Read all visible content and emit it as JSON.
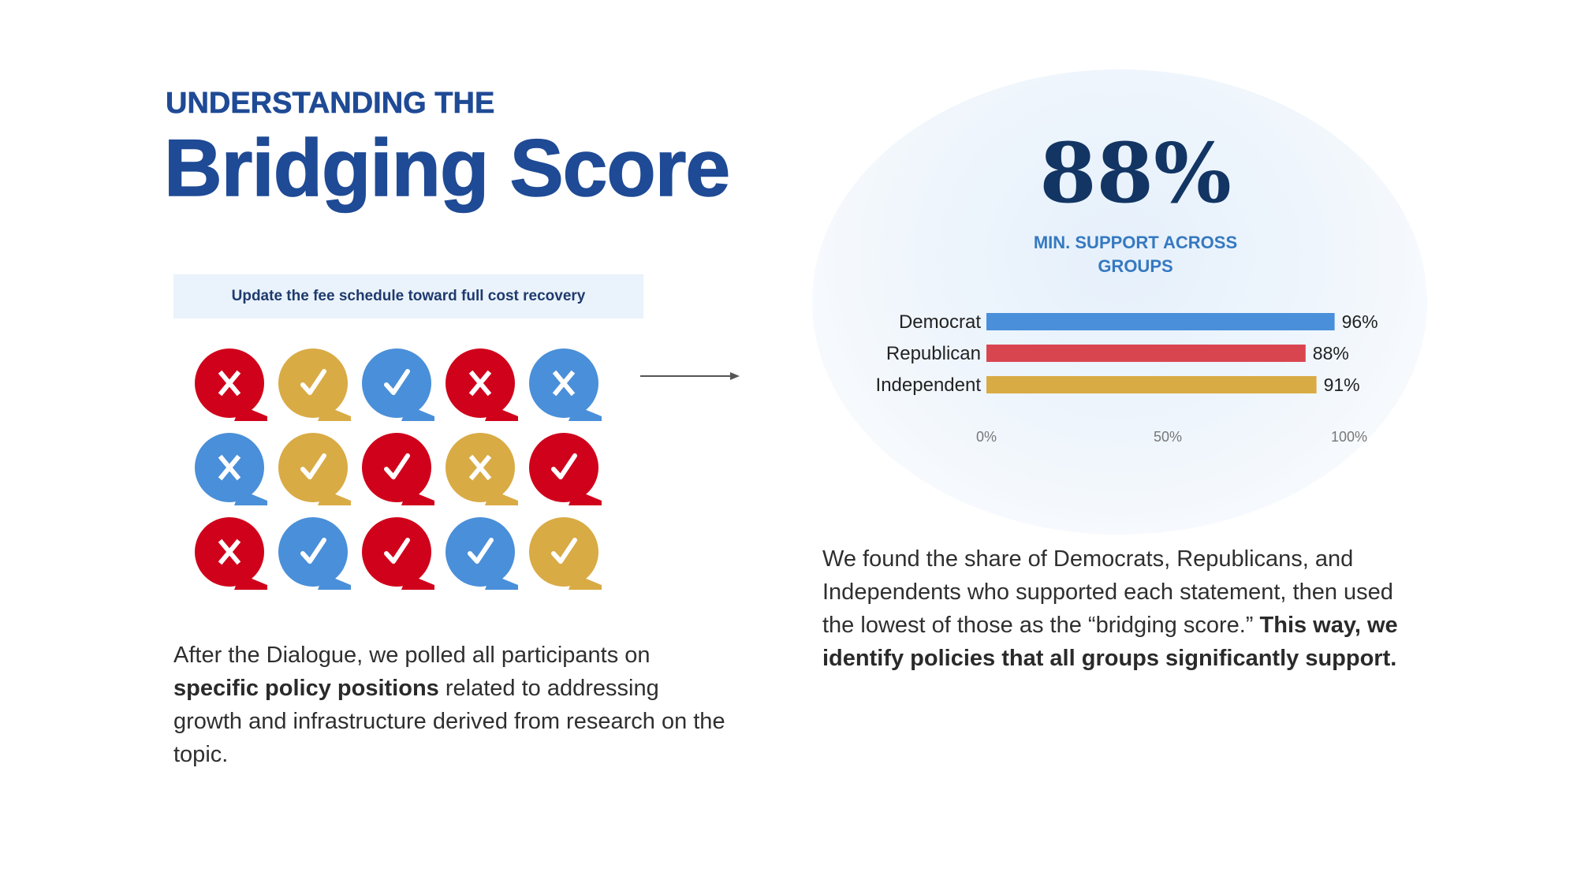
{
  "header": {
    "kicker": "UNDERSTANDING THE",
    "title": "Bridging Score"
  },
  "statement": {
    "text": "Update the fee schedule toward full cost recovery"
  },
  "colors": {
    "red": "#d0021b",
    "gold": "#d9ab45",
    "blue": "#4a8fd9",
    "bar_blue": "#4a8fd9",
    "bar_red": "#d9454f",
    "bar_gold": "#d9ab45",
    "title_blue": "#1f4a95",
    "stat_navy": "#123563",
    "label_blue": "#3579c0"
  },
  "responses": [
    [
      {
        "color": "red",
        "mark": "x"
      },
      {
        "color": "gold",
        "mark": "check"
      },
      {
        "color": "blue",
        "mark": "check"
      },
      {
        "color": "red",
        "mark": "x"
      },
      {
        "color": "blue",
        "mark": "x"
      }
    ],
    [
      {
        "color": "blue",
        "mark": "x"
      },
      {
        "color": "gold",
        "mark": "check"
      },
      {
        "color": "red",
        "mark": "check"
      },
      {
        "color": "gold",
        "mark": "x"
      },
      {
        "color": "red",
        "mark": "check"
      }
    ],
    [
      {
        "color": "red",
        "mark": "x"
      },
      {
        "color": "blue",
        "mark": "check"
      },
      {
        "color": "red",
        "mark": "check"
      },
      {
        "color": "blue",
        "mark": "check"
      },
      {
        "color": "gold",
        "mark": "check"
      }
    ]
  ],
  "left_caption": {
    "part1": "After the Dialogue, we polled all participants on ",
    "bold": "specific policy positions",
    "part2": " related to addressing growth and infrastructure derived from research on the topic."
  },
  "stat": {
    "value": "88%",
    "label": "MIN. SUPPORT ACROSS GROUPS"
  },
  "chart_data": {
    "type": "bar",
    "orientation": "horizontal",
    "categories": [
      "Democrat",
      "Republican",
      "Independent"
    ],
    "values": [
      96,
      88,
      91
    ],
    "value_labels": [
      "96%",
      "88%",
      "91%"
    ],
    "bar_colors": [
      "#4a8fd9",
      "#d9454f",
      "#d9ab45"
    ],
    "xlim": [
      0,
      100
    ],
    "x_ticks": [
      "0%",
      "50%",
      "100%"
    ],
    "x_tick_values": [
      0,
      50,
      100
    ],
    "grid": false,
    "title": "",
    "xlabel": "",
    "ylabel": ""
  },
  "right_caption": {
    "part1": "We found the share of Democrats, Republicans, and Independents who supported each statement, then used the lowest of those as the “bridging score.” ",
    "bold": "This way, we identify policies that all groups significantly support."
  }
}
